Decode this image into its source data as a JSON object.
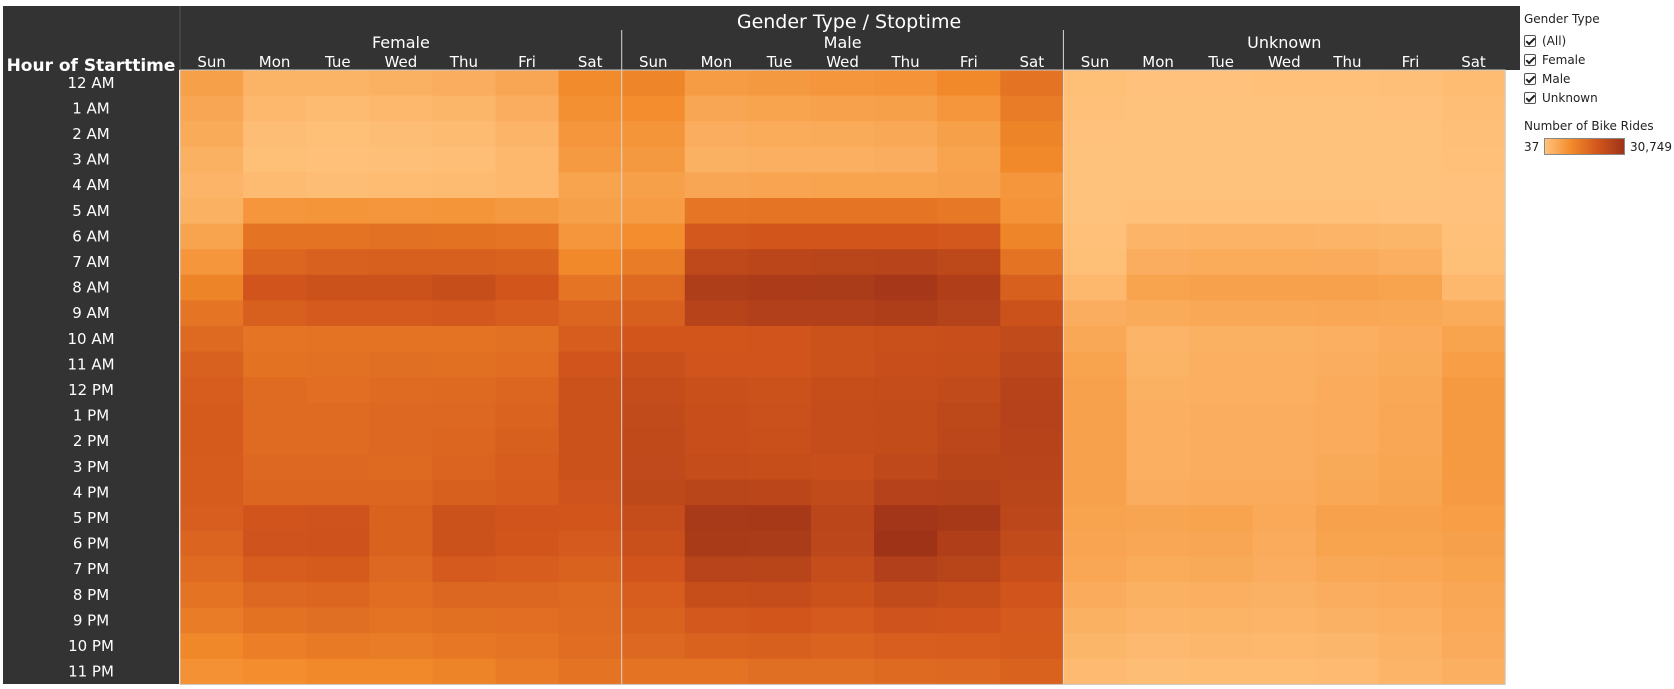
{
  "chart_data": {
    "type": "heatmap",
    "title": "Gender Type / Stoptime",
    "row_axis_label": "Hour of Starttime",
    "groups": [
      "Female",
      "Male",
      "Unknown"
    ],
    "days": [
      "Sun",
      "Mon",
      "Tue",
      "Wed",
      "Thu",
      "Fri",
      "Sat"
    ],
    "hours": [
      "12 AM",
      "1 AM",
      "2 AM",
      "3 AM",
      "4 AM",
      "5 AM",
      "6 AM",
      "7 AM",
      "8 AM",
      "9 AM",
      "10 AM",
      "11 AM",
      "12 PM",
      "1 PM",
      "2 PM",
      "3 PM",
      "4 PM",
      "5 PM",
      "6 PM",
      "7 PM",
      "8 PM",
      "9 PM",
      "10 PM",
      "11 PM"
    ],
    "measure": "Number of Bike Rides",
    "color_range": [
      37,
      30749
    ],
    "color_scale": [
      "#FFC27C",
      "#F28A2A",
      "#D2561C",
      "#9E3318"
    ],
    "matrix": [
      [
        600,
        220,
        220,
        250,
        300,
        450,
        1350,
        1700,
        700,
        800,
        900,
        1000,
        1500,
        3200,
        80,
        50,
        50,
        60,
        60,
        70,
        110
      ],
      [
        450,
        150,
        120,
        150,
        180,
        300,
        1150,
        1300,
        450,
        500,
        550,
        600,
        900,
        2400,
        60,
        40,
        40,
        40,
        40,
        50,
        90
      ],
      [
        350,
        100,
        80,
        100,
        120,
        200,
        900,
        950,
        300,
        330,
        350,
        400,
        600,
        1800,
        50,
        40,
        40,
        40,
        40,
        40,
        70
      ],
      [
        250,
        80,
        60,
        70,
        90,
        150,
        750,
        800,
        250,
        260,
        280,
        300,
        500,
        1500,
        40,
        37,
        37,
        37,
        37,
        40,
        60
      ],
      [
        200,
        120,
        100,
        110,
        120,
        150,
        500,
        600,
        450,
        480,
        500,
        500,
        550,
        900,
        40,
        40,
        40,
        40,
        40,
        40,
        50
      ],
      [
        250,
        900,
        950,
        900,
        950,
        800,
        600,
        700,
        2900,
        3100,
        3000,
        3000,
        2700,
        1000,
        40,
        60,
        60,
        60,
        60,
        50,
        50
      ],
      [
        500,
        3200,
        3300,
        3500,
        3400,
        3000,
        900,
        1300,
        7500,
        8000,
        8000,
        8000,
        7500,
        1700,
        60,
        200,
        210,
        210,
        200,
        180,
        60
      ],
      [
        900,
        5000,
        5800,
        5900,
        6000,
        5500,
        1500,
        2400,
        13500,
        15000,
        15500,
        16500,
        14000,
        3300,
        80,
        300,
        330,
        330,
        320,
        280,
        80
      ],
      [
        1800,
        8500,
        9500,
        9500,
        11000,
        8000,
        3000,
        4500,
        21000,
        22000,
        22500,
        25500,
        20500,
        6000,
        150,
        500,
        550,
        560,
        560,
        500,
        150
      ],
      [
        3000,
        6000,
        7000,
        7000,
        7500,
        6500,
        5000,
        6000,
        17000,
        19000,
        19000,
        21000,
        18000,
        9500,
        300,
        350,
        400,
        400,
        420,
        400,
        330
      ],
      [
        4500,
        3000,
        3200,
        3300,
        3200,
        3500,
        6500,
        8000,
        8000,
        8500,
        9500,
        10000,
        10500,
        12500,
        400,
        200,
        250,
        250,
        280,
        320,
        500
      ],
      [
        5800,
        3400,
        3500,
        3700,
        3600,
        4000,
        8500,
        10000,
        8500,
        8500,
        9500,
        10500,
        11000,
        14500,
        500,
        220,
        260,
        260,
        300,
        350,
        650
      ],
      [
        6500,
        4200,
        3800,
        4300,
        4400,
        5000,
        9500,
        11500,
        10000,
        9500,
        11000,
        11500,
        12500,
        17000,
        560,
        250,
        280,
        280,
        320,
        400,
        750
      ],
      [
        6800,
        4300,
        4200,
        4600,
        4600,
        5400,
        9500,
        12500,
        10500,
        9800,
        11500,
        12000,
        14000,
        17500,
        560,
        260,
        300,
        300,
        340,
        420,
        770
      ],
      [
        6800,
        4300,
        4300,
        4700,
        5000,
        6000,
        9500,
        12800,
        10500,
        10200,
        11500,
        12000,
        14500,
        17000,
        560,
        260,
        300,
        300,
        340,
        420,
        750
      ],
      [
        6700,
        4600,
        4600,
        4400,
        5200,
        6500,
        9500,
        13000,
        11500,
        11000,
        10500,
        13500,
        16000,
        16500,
        560,
        260,
        300,
        300,
        360,
        440,
        750
      ],
      [
        6700,
        5000,
        5000,
        4900,
        6000,
        6600,
        9000,
        14000,
        15500,
        15000,
        12500,
        17500,
        18500,
        15500,
        560,
        300,
        340,
        340,
        400,
        460,
        720
      ],
      [
        6300,
        8500,
        9000,
        5500,
        9500,
        8500,
        8000,
        11500,
        23500,
        24500,
        15000,
        27500,
        24500,
        14500,
        520,
        460,
        500,
        380,
        550,
        550,
        650
      ],
      [
        5300,
        9000,
        9200,
        5500,
        9500,
        8000,
        7000,
        10000,
        23000,
        22500,
        14500,
        30749,
        20000,
        12500,
        480,
        420,
        450,
        340,
        500,
        500,
        580
      ],
      [
        4200,
        6500,
        6800,
        4600,
        7000,
        6500,
        5500,
        8500,
        16500,
        16000,
        11500,
        19000,
        16000,
        10500,
        420,
        330,
        360,
        300,
        400,
        420,
        500
      ],
      [
        3300,
        4700,
        5000,
        4000,
        4800,
        4800,
        4500,
        6500,
        11000,
        11500,
        9500,
        12500,
        11000,
        8500,
        340,
        250,
        270,
        240,
        300,
        320,
        430
      ],
      [
        2400,
        3400,
        3700,
        3200,
        3600,
        3800,
        4200,
        5500,
        7500,
        8000,
        7000,
        9000,
        8500,
        7000,
        250,
        200,
        220,
        200,
        240,
        280,
        380
      ],
      [
        1600,
        2200,
        2600,
        2400,
        2800,
        3000,
        4000,
        4600,
        5500,
        6000,
        5400,
        6200,
        6500,
        6800,
        180,
        140,
        160,
        150,
        170,
        230,
        320
      ],
      [
        1100,
        1300,
        1500,
        1500,
        1800,
        2500,
        3300,
        3300,
        3200,
        3700,
        3700,
        4400,
        4700,
        5500,
        130,
        100,
        110,
        110,
        130,
        200,
        280
      ]
    ]
  },
  "legend": {
    "filter_title": "Gender Type",
    "filter_items": [
      {
        "label": "(All)",
        "checked": true
      },
      {
        "label": "Female",
        "checked": true
      },
      {
        "label": "Male",
        "checked": true
      },
      {
        "label": "Unknown",
        "checked": true
      }
    ],
    "color_title": "Number of Bike Rides",
    "color_min_label": "37",
    "color_max_label": "30,749"
  }
}
